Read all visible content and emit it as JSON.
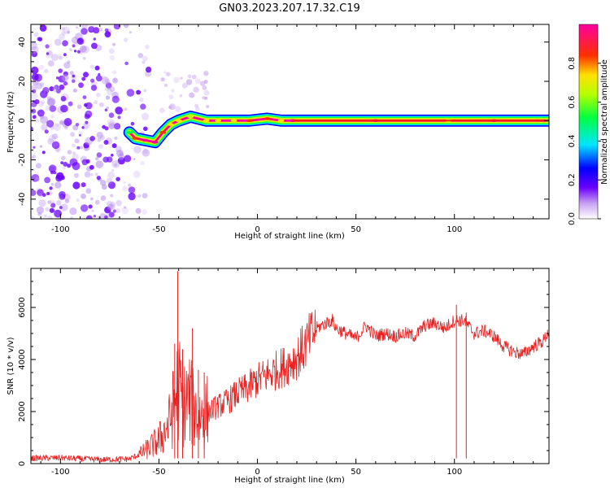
{
  "figure": {
    "title": "GN03.2023.207.17.32.C19"
  },
  "chart_data": [
    {
      "type": "heatmap",
      "xlabel": "Height of straight line (km)",
      "ylabel": "Frequency (Hz)",
      "xlim": [
        -115,
        148
      ],
      "ylim": [
        -50,
        49
      ],
      "xticks": [
        -100,
        -50,
        0,
        50,
        100
      ],
      "yticks": [
        -40,
        -20,
        0,
        20,
        40
      ],
      "colorbar": {
        "label": "Normalized spectral amplitude",
        "range": [
          0,
          1
        ],
        "ticks": [
          "0.0",
          "0.2",
          "0.4",
          "0.6",
          "0.8"
        ],
        "colormap": "white-violet-blue-cyan-green-yellow-red-magenta"
      },
      "noise_region": {
        "x": [
          -115,
          -62
        ],
        "y": [
          -50,
          49
        ]
      },
      "ridge": [
        {
          "x": -65,
          "y": -6,
          "width": 1.5,
          "amp": 0.5
        },
        {
          "x": -62,
          "y": -9,
          "width": 2,
          "amp": 0.75
        },
        {
          "x": -57,
          "y": -10,
          "width": 2,
          "amp": 0.9
        },
        {
          "x": -52,
          "y": -11,
          "width": 2,
          "amp": 0.9
        },
        {
          "x": -48,
          "y": -6,
          "width": 2,
          "amp": 0.75
        },
        {
          "x": -44,
          "y": -2,
          "width": 3,
          "amp": 0.65
        },
        {
          "x": -40,
          "y": 0,
          "width": 3,
          "amp": 0.7
        },
        {
          "x": -34,
          "y": 2,
          "width": 4,
          "amp": 0.6
        },
        {
          "x": -26,
          "y": 0,
          "width": 3,
          "amp": 0.65
        },
        {
          "x": -20,
          "y": 0,
          "width": 3,
          "amp": 0.7
        },
        {
          "x": -12,
          "y": 0,
          "width": 3,
          "amp": 0.7
        },
        {
          "x": -4,
          "y": 0,
          "width": 3,
          "amp": 0.75
        },
        {
          "x": 5,
          "y": 1,
          "width": 3,
          "amp": 0.75
        },
        {
          "x": 12,
          "y": 0,
          "width": 3,
          "amp": 0.7
        },
        {
          "x": 18,
          "y": 0,
          "width": 1,
          "amp": 1.0
        },
        {
          "x": 60,
          "y": 0,
          "width": 1,
          "amp": 1.0
        },
        {
          "x": 97,
          "y": 0,
          "width": 3,
          "amp": 0.6
        },
        {
          "x": 120,
          "y": 0,
          "width": 2,
          "amp": 0.9
        },
        {
          "x": 148,
          "y": 0,
          "width": 4,
          "amp": 0.5
        }
      ]
    },
    {
      "type": "line",
      "xlabel": "Height of straight line (km)",
      "ylabel": "SNR (10 * v/v)",
      "xlim": [
        -115,
        148
      ],
      "ylim": [
        0,
        7500
      ],
      "xticks": [
        -100,
        -50,
        0,
        50,
        100
      ],
      "yticks": [
        0,
        2000,
        4000,
        6000
      ],
      "color": "#e82020",
      "series": [
        {
          "x": [
            -115,
            -100,
            -80,
            -65,
            -60,
            -55,
            -50,
            -45,
            -42,
            -40,
            -38,
            -35,
            -30,
            -25,
            -20,
            -15,
            -10,
            -5,
            0,
            5,
            10,
            15,
            20,
            25,
            30,
            35,
            38,
            40,
            45,
            50,
            55,
            60,
            65,
            70,
            75,
            80,
            85,
            90,
            95,
            100,
            105,
            110,
            115,
            120,
            125,
            130,
            135,
            140,
            145,
            148
          ],
          "y": [
            200,
            220,
            150,
            180,
            350,
            600,
            900,
            1500,
            2400,
            3000,
            2200,
            2500,
            1800,
            2000,
            2200,
            2400,
            2700,
            2900,
            3200,
            3400,
            3600,
            3800,
            4100,
            4600,
            5200,
            5400,
            5500,
            5200,
            5000,
            4800,
            5300,
            4900,
            5000,
            4900,
            5000,
            4900,
            5300,
            5400,
            5200,
            5500,
            5500,
            5000,
            5100,
            4900,
            4500,
            4300,
            4200,
            4500,
            4700,
            5100
          ]
        }
      ],
      "spikes": [
        {
          "x": -42,
          "y": 4600
        },
        {
          "x": -40.5,
          "y": 7400
        },
        {
          "x": -38,
          "y": 4400
        },
        {
          "x": -33,
          "y": 5200
        },
        {
          "x": -30,
          "y": 3600
        },
        {
          "x": -27,
          "y": 3500
        },
        {
          "x": 101,
          "y": 6100
        },
        {
          "x": 106,
          "y": 5800
        }
      ]
    }
  ]
}
